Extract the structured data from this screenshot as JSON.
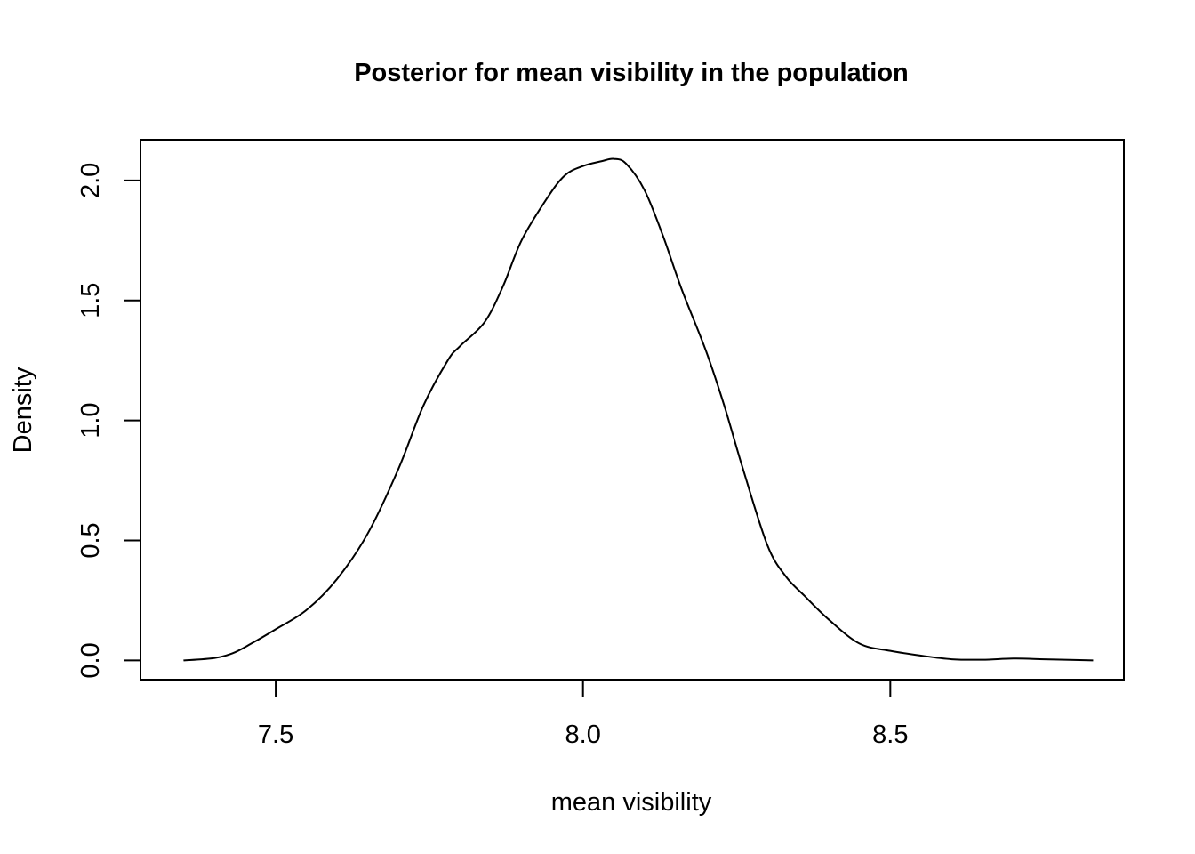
{
  "chart_data": {
    "type": "line",
    "title": "Posterior for mean visibility in the population",
    "xlabel": "mean visibility",
    "ylabel": "Density",
    "xlim": [
      7.28,
      8.88
    ],
    "ylim": [
      -0.08,
      2.17
    ],
    "x_ticks": [
      7.5,
      8.0,
      8.5
    ],
    "x_tick_labels": [
      "7.5",
      "8.0",
      "8.5"
    ],
    "y_ticks": [
      0.0,
      0.5,
      1.0,
      1.5,
      2.0
    ],
    "y_tick_labels": [
      "0.0",
      "0.5",
      "1.0",
      "1.5",
      "2.0"
    ],
    "grid": false,
    "legend": "none",
    "series": [
      {
        "color": "#000000",
        "x": [
          7.35,
          7.4,
          7.43,
          7.46,
          7.5,
          7.55,
          7.6,
          7.65,
          7.7,
          7.74,
          7.78,
          7.8,
          7.84,
          7.87,
          7.9,
          7.94,
          7.97,
          8.0,
          8.03,
          8.05,
          8.07,
          8.1,
          8.13,
          8.16,
          8.2,
          8.23,
          8.26,
          8.3,
          8.33,
          8.36,
          8.4,
          8.45,
          8.5,
          8.55,
          8.6,
          8.65,
          8.7,
          8.75,
          8.8,
          8.83
        ],
        "y": [
          0.0,
          0.01,
          0.03,
          0.07,
          0.13,
          0.21,
          0.34,
          0.53,
          0.8,
          1.06,
          1.25,
          1.31,
          1.41,
          1.56,
          1.75,
          1.92,
          2.02,
          2.06,
          2.08,
          2.09,
          2.07,
          1.96,
          1.77,
          1.55,
          1.29,
          1.06,
          0.8,
          0.48,
          0.35,
          0.27,
          0.17,
          0.07,
          0.04,
          0.02,
          0.005,
          0.003,
          0.008,
          0.005,
          0.002,
          0.0
        ]
      }
    ]
  }
}
